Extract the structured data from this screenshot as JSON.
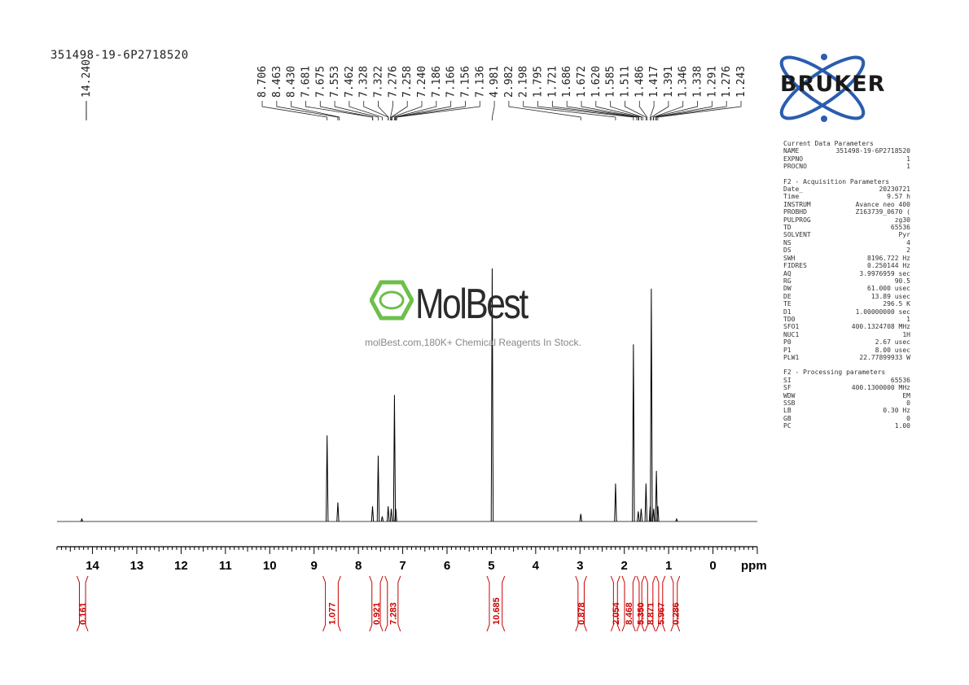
{
  "sample": {
    "name": "351498-19-6P2718520"
  },
  "logo": {
    "text": "BRUKER"
  },
  "watermark": {
    "brand": "MolBest",
    "tagline": "molBest.com,180K+ Chemical Reagents In Stock."
  },
  "colors": {
    "integral": "#cc0000",
    "spectrum": "#000000",
    "logo_blue": "#2a5db0",
    "watermark_green": "#6cc04a"
  },
  "parameters": [
    {
      "heading": "Current Data Parameters",
      "rows": [
        [
          "NAME",
          "351498-19-6P2718520"
        ],
        [
          "EXPNO",
          "1"
        ],
        [
          "PROCNO",
          "1"
        ]
      ]
    },
    {
      "heading": "F2 - Acquisition Parameters",
      "rows": [
        [
          "Date_",
          "20230721"
        ],
        [
          "Time",
          "9.57 h"
        ],
        [
          "INSTRUM",
          "Avance neo 400"
        ],
        [
          "PROBHD",
          "Z163739_0670 ("
        ],
        [
          "PULPROG",
          "zg30"
        ],
        [
          "TD",
          "65536"
        ],
        [
          "SOLVENT",
          "Pyr"
        ],
        [
          "NS",
          "4"
        ],
        [
          "DS",
          "2"
        ],
        [
          "SWH",
          "8196.722 Hz"
        ],
        [
          "FIDRES",
          "0.250144 Hz"
        ],
        [
          "AQ",
          "3.9976959 sec"
        ],
        [
          "RG",
          "90.5"
        ],
        [
          "DW",
          "61.000 usec"
        ],
        [
          "DE",
          "13.89 usec"
        ],
        [
          "TE",
          "296.5 K"
        ],
        [
          "D1",
          "1.00000000 sec"
        ],
        [
          "TD0",
          "1"
        ],
        [
          "SFO1",
          "400.1324708 MHz"
        ],
        [
          "NUC1",
          "1H"
        ],
        [
          "P0",
          "2.67 usec"
        ],
        [
          "P1",
          "8.00 usec"
        ],
        [
          "PLW1",
          "22.77899933 W"
        ]
      ]
    },
    {
      "heading": "F2 - Processing parameters",
      "rows": [
        [
          "SI",
          "65536"
        ],
        [
          "SF",
          "400.1300000 MHz"
        ],
        [
          "WDW",
          "EM"
        ],
        [
          "SSB",
          "0"
        ],
        [
          "LB",
          "0.30 Hz"
        ],
        [
          "GB",
          "0"
        ],
        [
          "PC",
          "1.00"
        ]
      ]
    }
  ],
  "chart_data": {
    "type": "line",
    "xlabel": "ppm",
    "xlim": [
      14.8,
      -1.0
    ],
    "x_reversed": true,
    "x_ticks": [
      14,
      13,
      12,
      11,
      10,
      9,
      8,
      7,
      6,
      5,
      4,
      3,
      2,
      1,
      0
    ],
    "peak_labels": {
      "left_group": [
        "14.240"
      ],
      "right_group": [
        "8.706",
        "8.463",
        "8.430",
        "7.681",
        "7.675",
        "7.553",
        "7.462",
        "7.328",
        "7.322",
        "7.276",
        "7.258",
        "7.240",
        "7.186",
        "7.166",
        "7.156",
        "7.136",
        "4.981",
        "2.982",
        "2.198",
        "1.795",
        "1.721",
        "1.686",
        "1.672",
        "1.620",
        "1.585",
        "1.511",
        "1.486",
        "1.417",
        "1.391",
        "1.346",
        "1.338",
        "1.291",
        "1.276",
        "1.243"
      ]
    },
    "peaks": [
      {
        "ppm": 14.24,
        "height": 0.01,
        "width": 0.02
      },
      {
        "ppm": 8.706,
        "height": 0.34,
        "width": 0.012
      },
      {
        "ppm": 8.463,
        "height": 0.075,
        "width": 0.012
      },
      {
        "ppm": 7.681,
        "height": 0.06,
        "width": 0.01
      },
      {
        "ppm": 7.553,
        "height": 0.26,
        "width": 0.012
      },
      {
        "ppm": 7.462,
        "height": 0.02,
        "width": 0.012
      },
      {
        "ppm": 7.328,
        "height": 0.06,
        "width": 0.01
      },
      {
        "ppm": 7.258,
        "height": 0.05,
        "width": 0.01
      },
      {
        "ppm": 7.186,
        "height": 0.5,
        "width": 0.012
      },
      {
        "ppm": 7.156,
        "height": 0.05,
        "width": 0.01
      },
      {
        "ppm": 4.981,
        "height": 1.0,
        "width": 0.015
      },
      {
        "ppm": 2.982,
        "height": 0.03,
        "width": 0.02
      },
      {
        "ppm": 2.198,
        "height": 0.15,
        "width": 0.012
      },
      {
        "ppm": 1.795,
        "height": 0.7,
        "width": 0.012
      },
      {
        "ppm": 1.686,
        "height": 0.04,
        "width": 0.01
      },
      {
        "ppm": 1.62,
        "height": 0.05,
        "width": 0.01
      },
      {
        "ppm": 1.511,
        "height": 0.15,
        "width": 0.01
      },
      {
        "ppm": 1.417,
        "height": 0.06,
        "width": 0.01
      },
      {
        "ppm": 1.391,
        "height": 0.92,
        "width": 0.012
      },
      {
        "ppm": 1.338,
        "height": 0.05,
        "width": 0.01
      },
      {
        "ppm": 1.276,
        "height": 0.2,
        "width": 0.01
      },
      {
        "ppm": 1.243,
        "height": 0.06,
        "width": 0.01
      },
      {
        "ppm": 0.82,
        "height": 0.01,
        "width": 0.02
      }
    ],
    "integrals": [
      {
        "from": 14.35,
        "to": 14.1,
        "value": "0.161"
      },
      {
        "from": 8.8,
        "to": 8.4,
        "value": "1.077"
      },
      {
        "from": 7.75,
        "to": 7.45,
        "value": "0.921"
      },
      {
        "from": 7.4,
        "to": 7.05,
        "value": "7.283"
      },
      {
        "from": 5.1,
        "to": 4.7,
        "value": "10.685"
      },
      {
        "from": 3.1,
        "to": 2.85,
        "value": "0.878"
      },
      {
        "from": 2.3,
        "to": 2.1,
        "value": "2.054"
      },
      {
        "from": 2.05,
        "to": 1.75,
        "value": "8.468"
      },
      {
        "from": 1.72,
        "to": 1.55,
        "value": "5.350"
      },
      {
        "from": 1.53,
        "to": 1.3,
        "value": "8.871"
      },
      {
        "from": 1.28,
        "to": 1.08,
        "value": "5.967"
      },
      {
        "from": 0.95,
        "to": 0.75,
        "value": "0.286"
      }
    ]
  }
}
